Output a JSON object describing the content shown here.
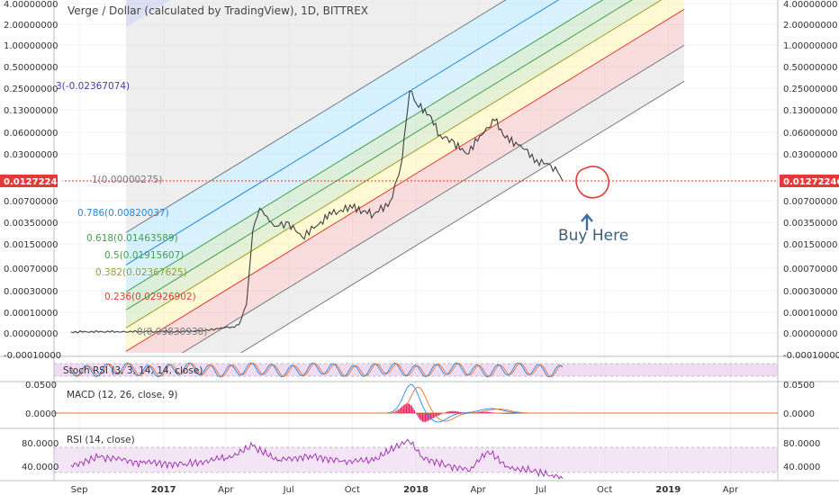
{
  "chart_data": {
    "type": "line",
    "title": "Verge / Dollar (calculated by TradingView), 1D, BITTREX",
    "price_axis_ticks": [
      "4.00000000",
      "2.00000000",
      "1.00000000",
      "0.50000000",
      "0.25000000",
      "0.13000000",
      "0.06000000",
      "0.03000000",
      "0.01272246",
      "0.00700000",
      "0.00350000",
      "0.00150000",
      "0.00070000",
      "0.00030000",
      "0.00010000",
      "0.00000000",
      "-0.00010000"
    ],
    "time_axis_ticks": [
      "Sep",
      "2017",
      "Apr",
      "Jul",
      "Oct",
      "2018",
      "Apr",
      "Jul",
      "Oct",
      "2019",
      "Apr"
    ],
    "current_price": "0.01272246",
    "price_series": {
      "name": "",
      "x": [
        "2016-08-20",
        "2016-11-01",
        "2017-02-01",
        "2017-03-01",
        "2017-03-25",
        "2017-04-10",
        "2017-04-20",
        "2017-05-01",
        "2017-05-10",
        "2017-05-20",
        "2017-06-10",
        "2017-07-01",
        "2017-07-20",
        "2017-08-10",
        "2017-09-01",
        "2017-10-01",
        "2017-11-01",
        "2017-11-25",
        "2017-12-10",
        "2017-12-15",
        "2017-12-23",
        "2018-01-05",
        "2018-01-20",
        "2018-02-05",
        "2018-02-25",
        "2018-03-15",
        "2018-04-10",
        "2018-04-25",
        "2018-05-10",
        "2018-06-01",
        "2018-06-25",
        "2018-07-15",
        "2018-07-25",
        "2018-08-01"
      ],
      "y": [
        5e-06,
        5e-06,
        6e-06,
        1e-05,
        2.5e-05,
        3e-05,
        4e-05,
        0.00015,
        0.0025,
        0.0055,
        0.003,
        0.0035,
        0.002,
        0.003,
        0.0045,
        0.0055,
        0.0045,
        0.007,
        0.02,
        0.05,
        0.23,
        0.14,
        0.11,
        0.055,
        0.045,
        0.03,
        0.06,
        0.09,
        0.05,
        0.04,
        0.025,
        0.021,
        0.017,
        0.01272246
      ]
    },
    "fib_channel_levels": [
      {
        "label": "1(0.00000275)",
        "color": "#787b86"
      },
      {
        "label": "0.786(0.00820037)",
        "color": "#1e88e5"
      },
      {
        "label": "0.618(0.01463589)",
        "color": "#43a047"
      },
      {
        "label": "0.5(0.01915607)",
        "color": "#43a047"
      },
      {
        "label": "0.382(0.02367625)",
        "color": "#9e9d24"
      },
      {
        "label": "0.236(0.02926902)",
        "color": "#e53935"
      },
      {
        "label": "0(0.03830938)",
        "color": "#787b86"
      },
      {
        "label": "3(-0.02367074)",
        "color": "#4a3aae"
      }
    ],
    "annotation": {
      "text": "Buy Here",
      "color": "#3a5f7a"
    },
    "indicators": [
      {
        "name": "Stoch RSI (3, 3, 14, 14, close)",
        "colors": [
          "#1e88e5",
          "#e57335"
        ]
      },
      {
        "name": "MACD (12, 26, close, 9)",
        "ticks": [
          "0.0500",
          "0.0000"
        ],
        "colors": [
          "#1e88e5",
          "#e57335",
          "#e91e63"
        ]
      },
      {
        "name": "RSI (14, close)",
        "ticks": [
          "80.0000",
          "40.0000"
        ],
        "color": "#9c27b0",
        "x": [
          "2016-08-20",
          "2016-10-01",
          "2016-12-01",
          "2017-02-01",
          "2017-04-01",
          "2017-05-10",
          "2017-06-15",
          "2017-08-01",
          "2017-09-15",
          "2017-11-01",
          "2017-12-20",
          "2018-01-10",
          "2018-02-15",
          "2018-03-20",
          "2018-04-15",
          "2018-05-15",
          "2018-06-20",
          "2018-07-15",
          "2018-08-01"
        ],
        "y": [
          48,
          62,
          52,
          50,
          60,
          80,
          55,
          65,
          55,
          55,
          92,
          62,
          48,
          38,
          72,
          45,
          38,
          30,
          25
        ]
      }
    ],
    "grid": true
  },
  "colors": {
    "price_line": "#3f3f3f",
    "current_price_tag": "#e53935",
    "pane_band": "#e1bee7",
    "background": "#ffffff"
  }
}
